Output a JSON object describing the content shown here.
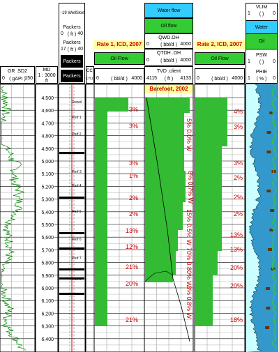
{
  "track_gr": {
    "title": "GR .SD2",
    "scale_left": "0",
    "unit": "( gAPI )",
    "scale_right": "150"
  },
  "track_md": {
    "title": "MD",
    "scale": "1 : 3000",
    "unit": "ft",
    "depth_labels": [
      "4,500",
      "4,600",
      "4,700",
      "4,800",
      "4,900",
      "5,000",
      "5,100",
      "5,200",
      "5,300",
      "5,400",
      "5,500",
      "5,600",
      "5,700",
      "5,800",
      "5,900",
      "6,000",
      "6,100",
      "6,200",
      "6,300",
      "6,400"
    ]
  },
  "track_well": {
    "top_label": "-19   WellSket",
    "packers_label_1": "Packers",
    "packers_scale_1": [
      "0",
      "( ft )",
      "40"
    ],
    "packers_label_2": "Packers",
    "packers_scale_2": [
      "17",
      "( ft )",
      "40"
    ],
    "packers_label_3": "Packers",
    "packers_label_4": "Packers",
    "annotations": [
      "Gravel",
      "Perf 1",
      "Perf 2",
      "Perf 3",
      "Perf 4",
      "Perf 5",
      "Perf 6",
      "Perf 7",
      "Perf 8"
    ]
  },
  "track_cc": {
    "label": "CC",
    "unit": "( ft )"
  },
  "track_rate1": {
    "title": "Rate 1, ICD, 2007",
    "legend": "Oil Flow",
    "scale_left": "0",
    "unit": "( bbl/d )",
    "scale_right": "4000",
    "percentages": [
      "3%",
      "3%",
      "3%",
      "1%",
      "2%",
      "2%",
      "13%",
      "12%",
      "21%",
      "20%",
      "21%"
    ],
    "color_fill": "#33bb33"
  },
  "track_barefoot": {
    "legend_water": "Water flow",
    "legend_oil": "Oil flow",
    "qwd_label": "QWD.OH",
    "qwd_scale": [
      "0",
      "( bbl/d )",
      "4000"
    ],
    "qtdh_label": "QTDH .OH",
    "qtdh_scale": [
      "0",
      "( bbl/d )",
      "4000"
    ],
    "tvd_label": "TVD .client",
    "tvd_scale": [
      "4115",
      "( ft )",
      "4133"
    ],
    "title": "Barefoot, 2002",
    "annotations": [
      "5% 0.0% W",
      "8% 0.7% W",
      "15% 0.5% W",
      "70% 0.80% W",
      "3% 0.8% W"
    ]
  },
  "track_rate2": {
    "title": "Rate 2, ICD, 2007",
    "legend": "Oil Flow",
    "scale_left": "0",
    "unit": "( bbl/d )",
    "scale_right": "4000",
    "percentages": [
      "4%",
      "3%",
      "3%",
      "2%",
      "2%",
      "2%",
      "13%",
      "13%",
      "20%",
      "20%",
      "18%"
    ]
  },
  "track_vlim": {
    "vlim_label": "VLIM",
    "vlim_scale": [
      "1",
      "(  )",
      "0"
    ],
    "legend_water": "Water",
    "legend_oil": "Oil",
    "psw_label": "PSW",
    "psw_scale": [
      "1",
      "(  )",
      "0"
    ],
    "phie_label": "PHIE",
    "phie_scale": [
      "1",
      "( % )",
      "0"
    ]
  },
  "colors": {
    "oil_green": "#33bb33",
    "water_cyan": "#33ccff",
    "title_yellow": "#ffff99",
    "title_red": "#cc0000",
    "gr_curve": "#008800"
  }
}
